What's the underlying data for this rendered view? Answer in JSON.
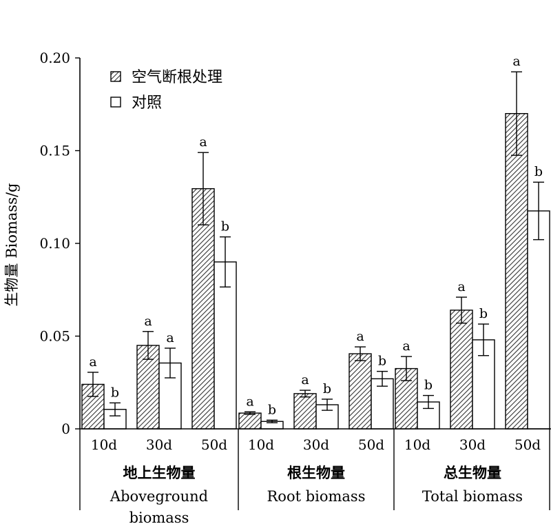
{
  "chart_data": {
    "type": "bar",
    "ylabel": "生物量 Biomass/g",
    "ylim": [
      0,
      0.2
    ],
    "yticks": [
      "0",
      "0.05",
      "0.10",
      "0.15",
      "0.20"
    ],
    "ytick_values": [
      0,
      0.05,
      0.1,
      0.15,
      0.2
    ],
    "grid": false,
    "legend": {
      "position": "top-left",
      "entries": [
        "空气断根处理",
        "对照"
      ]
    },
    "series": [
      {
        "name": "空气断根处理",
        "pattern": "hatched"
      },
      {
        "name": "对照",
        "pattern": "open"
      }
    ],
    "groups": [
      {
        "title_zh": "地上生物量",
        "title_en_lines": [
          "Aboveground",
          "biomass"
        ],
        "categories": [
          {
            "label": "10d",
            "values": [
              0.024,
              0.0105
            ],
            "errors": [
              0.0065,
              0.0035
            ],
            "letters": [
              "a",
              "b"
            ]
          },
          {
            "label": "30d",
            "values": [
              0.045,
              0.0355
            ],
            "errors": [
              0.0075,
              0.008
            ],
            "letters": [
              "a",
              "a"
            ]
          },
          {
            "label": "50d",
            "values": [
              0.1295,
              0.09
            ],
            "errors": [
              0.0195,
              0.0135
            ],
            "letters": [
              "a",
              "b"
            ]
          }
        ]
      },
      {
        "title_zh": "根生物量",
        "title_en_lines": [
          "Root biomass"
        ],
        "categories": [
          {
            "label": "10d",
            "values": [
              0.0085,
              0.004
            ],
            "errors": [
              0.0007,
              0.0007
            ],
            "letters": [
              "a",
              "b"
            ]
          },
          {
            "label": "30d",
            "values": [
              0.019,
              0.013
            ],
            "errors": [
              0.0018,
              0.003
            ],
            "letters": [
              "a",
              "b"
            ]
          },
          {
            "label": "50d",
            "values": [
              0.0405,
              0.027
            ],
            "errors": [
              0.0037,
              0.004
            ],
            "letters": [
              "a",
              "b"
            ]
          }
        ]
      },
      {
        "title_zh": "总生物量",
        "title_en_lines": [
          "Total biomass"
        ],
        "categories": [
          {
            "label": "10d",
            "values": [
              0.0325,
              0.0145
            ],
            "errors": [
              0.0065,
              0.0035
            ],
            "letters": [
              "a",
              "b"
            ]
          },
          {
            "label": "30d",
            "values": [
              0.064,
              0.048
            ],
            "errors": [
              0.007,
              0.0085
            ],
            "letters": [
              "a",
              "b"
            ]
          },
          {
            "label": "50d",
            "values": [
              0.17,
              0.1175
            ],
            "errors": [
              0.0225,
              0.0155
            ],
            "letters": [
              "a",
              "b"
            ]
          }
        ]
      }
    ]
  }
}
